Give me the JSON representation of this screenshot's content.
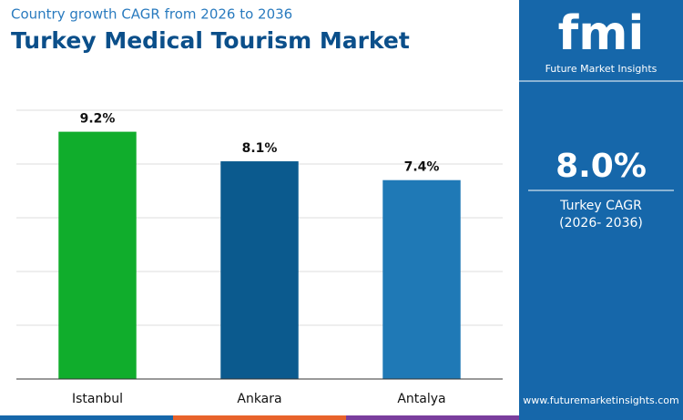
{
  "chart_data": {
    "type": "bar",
    "subtitle": "Country growth CAGR from 2026 to 2036",
    "title": "Turkey Medical Tourism Market",
    "categories": [
      "Istanbul",
      "Ankara",
      "Antalya"
    ],
    "values": [
      9.2,
      8.1,
      7.4
    ],
    "value_labels": [
      "9.2%",
      "8.1%",
      "7.4%"
    ],
    "colors": [
      "#10ad2c",
      "#0b5a8e",
      "#1f79b6"
    ],
    "ylim": [
      0,
      10
    ],
    "yticks": [
      0,
      2,
      4,
      6,
      8,
      10
    ],
    "grid": true
  },
  "panel": {
    "logo": "fmi",
    "brand": "Future Market Insights",
    "cagr": "8.0%",
    "cagr_label": "Turkey CAGR",
    "period": "(2026- 2036)",
    "website": "www.futuremarketinsights.com"
  }
}
